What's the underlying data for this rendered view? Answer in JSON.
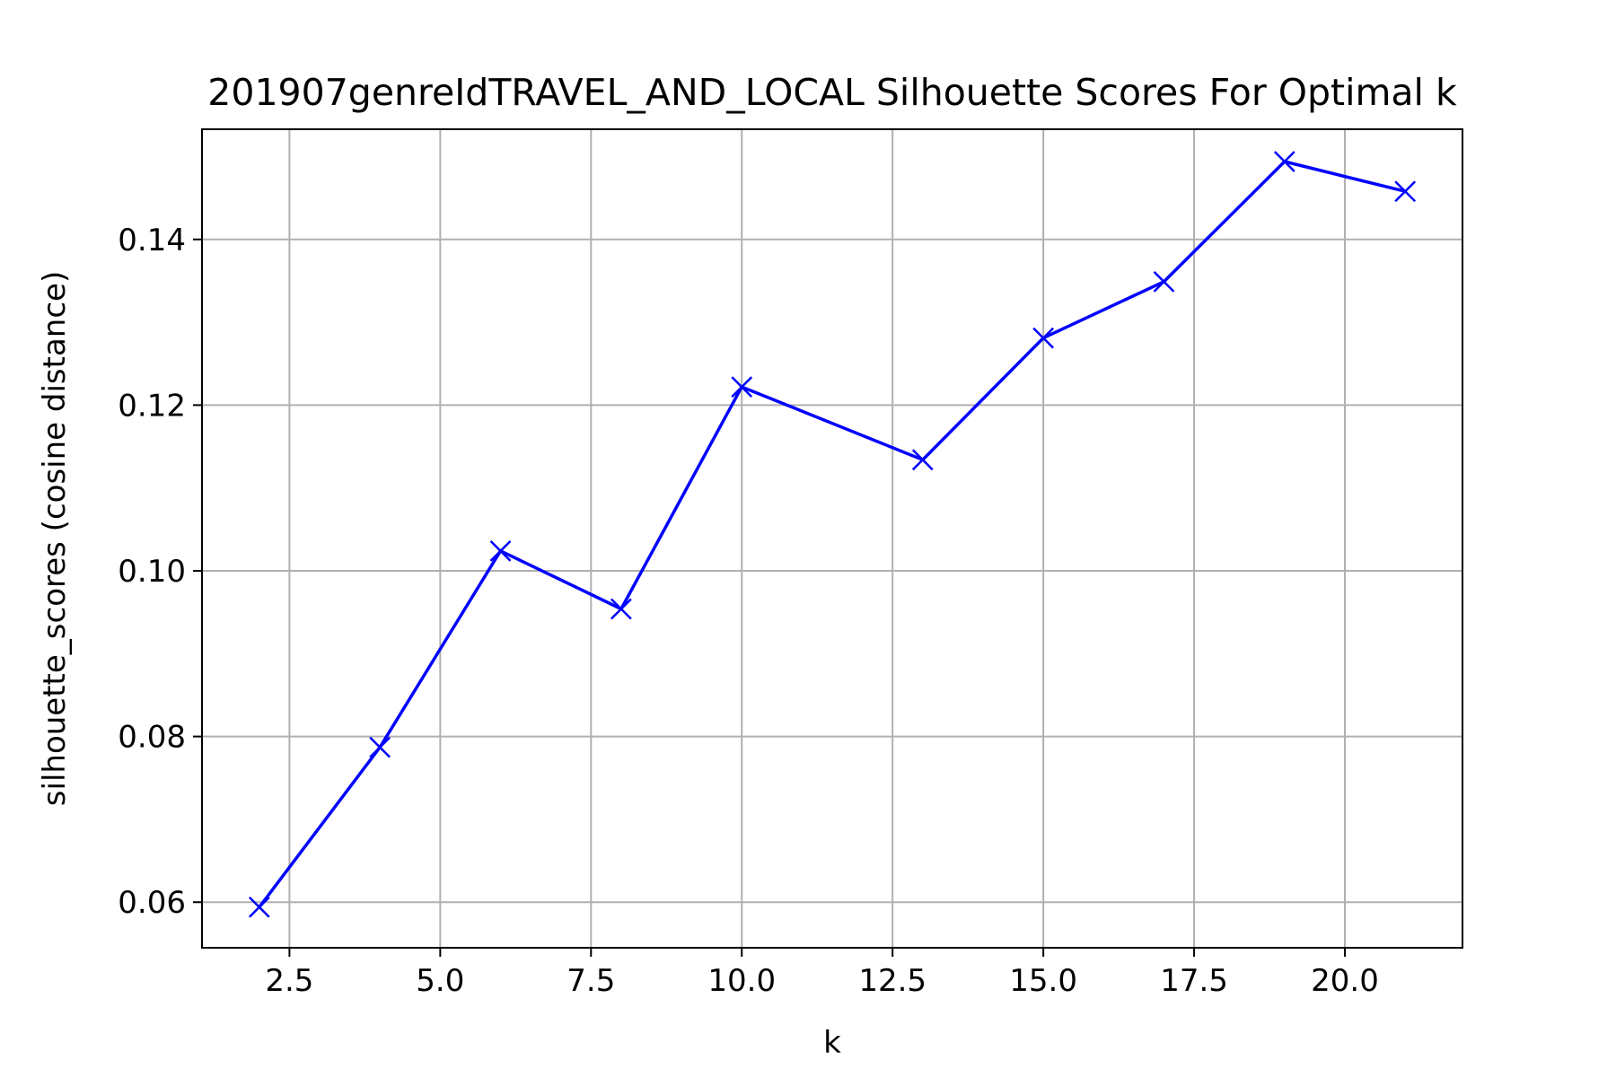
{
  "chart_data": {
    "type": "line",
    "title": "201907genreIdTRAVEL_AND_LOCAL Silhouette Scores For Optimal k",
    "xlabel": "k",
    "ylabel": "silhouette_scores (cosine distance)",
    "x": [
      2,
      4,
      6,
      8,
      10,
      13,
      15,
      17,
      19,
      21
    ],
    "series": [
      {
        "values": [
          0.0594,
          0.0787,
          0.1024,
          0.0954,
          0.1222,
          0.1134,
          0.1281,
          0.1349,
          0.1494,
          0.1458
        ],
        "color": "#0000ff",
        "marker": "x"
      }
    ],
    "xlim": [
      1.05,
      21.95
    ],
    "ylim": [
      0.0545,
      0.1533
    ],
    "xticks": [
      2.5,
      5.0,
      7.5,
      10.0,
      12.5,
      15.0,
      17.5,
      20.0
    ],
    "xtick_labels": [
      "2.5",
      "5.0",
      "7.5",
      "10.0",
      "12.5",
      "15.0",
      "17.5",
      "20.0"
    ],
    "yticks": [
      0.06,
      0.08,
      0.1,
      0.12,
      0.14
    ],
    "ytick_labels": [
      "0.06",
      "0.08",
      "0.10",
      "0.12",
      "0.14"
    ],
    "grid": true,
    "grid_color": "#b0b0b0",
    "legend": "none"
  }
}
